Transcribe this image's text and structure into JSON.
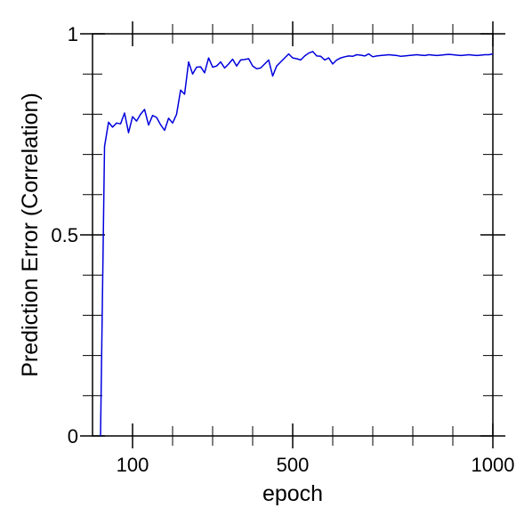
{
  "chart_data": {
    "type": "line",
    "title": "",
    "xlabel": "epoch",
    "ylabel": "Prediction Error (Correlation)",
    "xlim": [
      0,
      1000
    ],
    "ylim": [
      0,
      1
    ],
    "x_scale": "reciprocal",
    "x_ticks": [
      {
        "value": 100,
        "label": "100"
      },
      {
        "value": 500,
        "label": "500"
      },
      {
        "value": 1000,
        "label": "1000"
      }
    ],
    "y_ticks": [
      {
        "value": 0,
        "label": "0"
      },
      {
        "value": 0.5,
        "label": "0.5"
      },
      {
        "value": 1,
        "label": "1"
      }
    ],
    "grid": false,
    "series": [
      {
        "color": "#0000dd",
        "x": [
          20,
          30,
          40,
          50,
          60,
          70,
          80,
          90,
          100,
          110,
          120,
          130,
          140,
          150,
          160,
          170,
          180,
          190,
          200,
          210,
          220,
          230,
          240,
          250,
          260,
          270,
          280,
          290,
          300,
          310,
          320,
          330,
          340,
          350,
          360,
          370,
          380,
          390,
          400,
          410,
          420,
          430,
          440,
          450,
          460,
          470,
          480,
          490,
          500,
          510,
          520,
          530,
          540,
          550,
          560,
          570,
          580,
          590,
          600,
          610,
          620,
          630,
          640,
          650,
          660,
          670,
          680,
          690,
          700,
          710,
          720,
          730,
          740,
          750,
          760,
          770,
          780,
          790,
          800,
          810,
          820,
          830,
          840,
          850,
          860,
          870,
          880,
          890,
          900,
          910,
          920,
          930,
          940,
          950,
          960,
          970,
          980,
          990,
          1000
        ],
        "y": [
          0.0,
          0.72,
          0.78,
          0.768,
          0.778,
          0.776,
          0.803,
          0.754,
          0.794,
          0.783,
          0.8,
          0.812,
          0.773,
          0.797,
          0.792,
          0.774,
          0.76,
          0.79,
          0.778,
          0.8,
          0.86,
          0.85,
          0.93,
          0.9,
          0.917,
          0.918,
          0.903,
          0.94,
          0.917,
          0.92,
          0.93,
          0.915,
          0.925,
          0.937,
          0.92,
          0.935,
          0.936,
          0.938,
          0.92,
          0.913,
          0.915,
          0.925,
          0.935,
          0.895,
          0.92,
          0.93,
          0.94,
          0.95,
          0.94,
          0.938,
          0.935,
          0.945,
          0.952,
          0.956,
          0.945,
          0.944,
          0.935,
          0.94,
          0.925,
          0.935,
          0.94,
          0.943,
          0.945,
          0.944,
          0.948,
          0.947,
          0.945,
          0.95,
          0.943,
          0.945,
          0.946,
          0.947,
          0.948,
          0.947,
          0.946,
          0.944,
          0.945,
          0.946,
          0.947,
          0.948,
          0.947,
          0.946,
          0.948,
          0.947,
          0.946,
          0.947,
          0.948,
          0.949,
          0.948,
          0.947,
          0.946,
          0.947,
          0.948,
          0.947,
          0.946,
          0.947,
          0.948,
          0.948,
          0.95
        ]
      }
    ]
  }
}
